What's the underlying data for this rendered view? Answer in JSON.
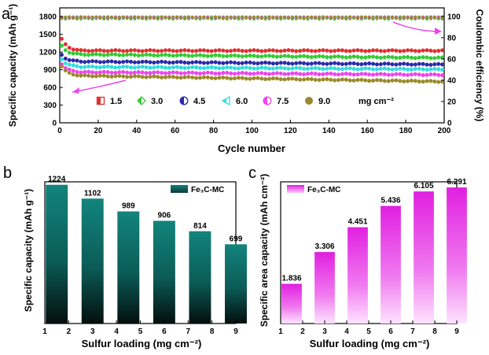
{
  "chart_data": [
    {
      "panel": "a",
      "type": "scatter",
      "xlabel": "Cycle number",
      "ylabel": "Specific capacity (mAh g⁻¹)",
      "y2label": "Coulombic efficiency (%)",
      "xlim": [
        0,
        200
      ],
      "ylim": [
        0,
        1950
      ],
      "y2lim": [
        0,
        108
      ],
      "xticks": [
        0,
        20,
        40,
        60,
        80,
        100,
        120,
        140,
        160,
        180,
        200
      ],
      "yticks": [
        0,
        300,
        600,
        900,
        1200,
        1500,
        1800
      ],
      "y2ticks": [
        0,
        20,
        40,
        60,
        80,
        100
      ],
      "legend_position": "bottom-center",
      "legend_unit": "mg cm⁻²",
      "series": [
        {
          "name": "1.5",
          "color": "#e03030",
          "marker": "half-square",
          "start": 1420,
          "plateau": 1225,
          "end": 1224,
          "efficiency": 99
        },
        {
          "name": "3.0",
          "color": "#33cc33",
          "marker": "half-diamond",
          "start": 1300,
          "plateau": 1160,
          "end": 1102,
          "efficiency": 98
        },
        {
          "name": "4.5",
          "color": "#2a2aaa",
          "marker": "half-circle",
          "start": 1150,
          "plateau": 1040,
          "end": 989,
          "efficiency": 99
        },
        {
          "name": "6.0",
          "color": "#33dddd",
          "marker": "half-triangle",
          "start": 1080,
          "plateau": 950,
          "end": 906,
          "efficiency": 99
        },
        {
          "name": "7.5",
          "color": "#ee44ee",
          "marker": "half-circle",
          "start": 1000,
          "plateau": 860,
          "end": 814,
          "efficiency": 99
        },
        {
          "name": "9.0",
          "color": "#9b8a2a",
          "marker": "circle",
          "start": 960,
          "plateau": 800,
          "end": 699,
          "efficiency": 99
        }
      ]
    },
    {
      "panel": "b",
      "type": "bar",
      "xlabel": "Sulfur loading (mg cm⁻²)",
      "ylabel": "Specific capacity (mAh g⁻¹)",
      "legend": "Fe₃C-MC",
      "xlim": [
        1,
        9
      ],
      "xticks": [
        1,
        2,
        3,
        4,
        5,
        6,
        7,
        8,
        9
      ],
      "ylim": [
        0,
        1250
      ],
      "categories": [
        1.5,
        3.0,
        4.5,
        6.0,
        7.5,
        9.0
      ],
      "values": [
        1224,
        1102,
        989,
        906,
        814,
        699
      ],
      "labels": [
        "1224",
        "1102",
        "989",
        "906",
        "814",
        "699"
      ]
    },
    {
      "panel": "c",
      "type": "bar",
      "xlabel": "Sulfur loading (mg cm⁻²)",
      "ylabel": "Specific area capacity (mAh cm⁻²)",
      "legend": "Fe₃C-MC",
      "xlim": [
        1,
        9
      ],
      "xticks": [
        1,
        2,
        3,
        4,
        5,
        6,
        7,
        8,
        9
      ],
      "ylim": [
        0,
        6.55
      ],
      "categories": [
        1.5,
        3.0,
        4.5,
        6.0,
        7.5,
        9.0
      ],
      "values": [
        1.836,
        3.306,
        4.451,
        5.436,
        6.105,
        6.291
      ],
      "labels": [
        "1.836",
        "3.306",
        "4.451",
        "5.436",
        "6.105",
        "6.291"
      ]
    }
  ]
}
